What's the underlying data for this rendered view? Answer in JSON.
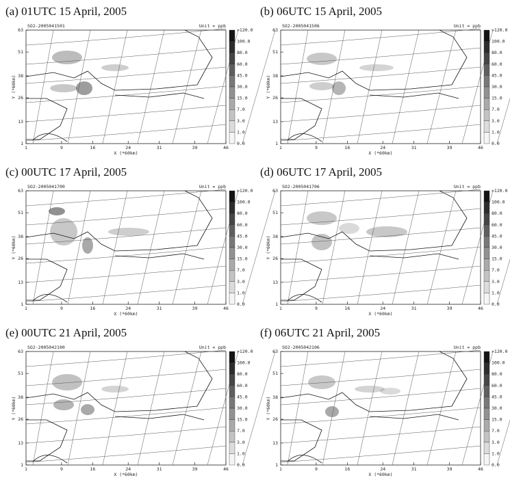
{
  "panels": [
    {
      "caption": "(a) 01UTC 15 April, 2005",
      "header": "SO2-2005041501",
      "unit": "Unit = ppb"
    },
    {
      "caption": "(b) 06UTC 15 April, 2005",
      "header": "SO2-2005041506",
      "unit": "Unit = ppb"
    },
    {
      "caption": "(c) 00UTC 17 April, 2005",
      "header": "SO2-2005041700",
      "unit": "Unit = ppb"
    },
    {
      "caption": "(d) 06UTC 17 April, 2005",
      "header": "SO2-2005041706",
      "unit": "Unit = ppb"
    },
    {
      "caption": "(e) 00UTC 21 April, 2005",
      "header": "SO2-2005042100",
      "unit": "Unit = ppb"
    },
    {
      "caption": "(f) 06UTC 21 April, 2005",
      "header": "SO2-2005042106",
      "unit": "Unit = ppb"
    }
  ],
  "axes": {
    "x_label": "X (*60km)",
    "y_label": "Y (*60km)",
    "xticks": [
      1,
      9,
      16,
      24,
      31,
      39,
      46
    ],
    "yticks": [
      1,
      13,
      26,
      38,
      51,
      63
    ]
  },
  "colorbar": [
    ">120.0",
    "100.0",
    "80.0",
    "60.0",
    "45.0",
    "30.0",
    "15.0",
    "7.0",
    "3.0",
    "1.0",
    "0.0"
  ]
}
